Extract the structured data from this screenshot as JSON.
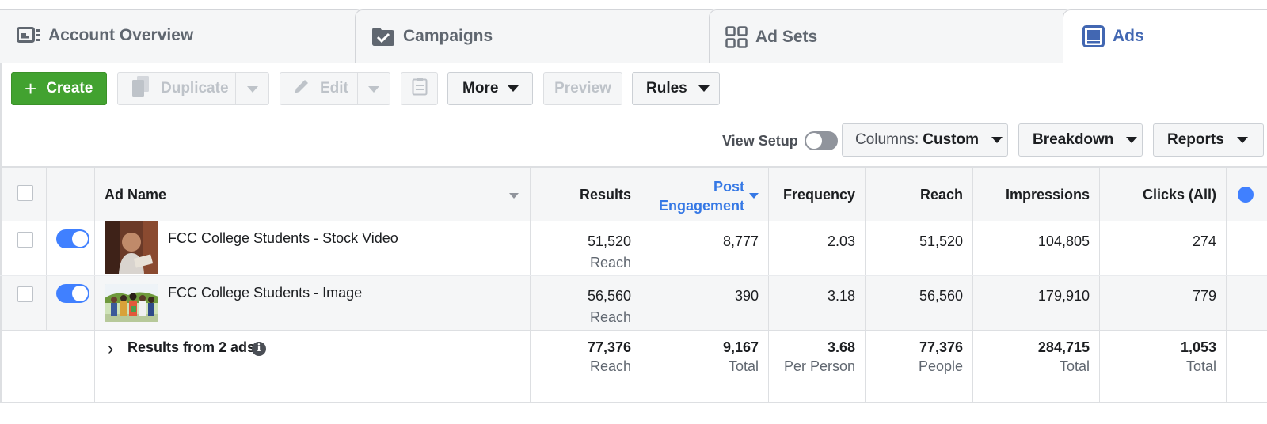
{
  "tabs": [
    {
      "label": "Account Overview",
      "icon": "account-overview-icon"
    },
    {
      "label": "Campaigns",
      "icon": "campaigns-folder-icon"
    },
    {
      "label": "Ad Sets",
      "icon": "ad-sets-grid-icon"
    },
    {
      "label": "Ads",
      "icon": "ads-icon",
      "active": true
    }
  ],
  "toolbar": {
    "create_label": "Create",
    "duplicate_label": "Duplicate",
    "edit_label": "Edit",
    "more_label": "More",
    "preview_label": "Preview",
    "rules_label": "Rules",
    "view_setup_label": "View Setup",
    "columns_prefix": "Columns:",
    "columns_value": "Custom",
    "breakdown_label": "Breakdown",
    "reports_label": "Reports"
  },
  "table": {
    "headers": {
      "ad_name": "Ad Name",
      "results": "Results",
      "post_engagement_1": "Post",
      "post_engagement_2": "Engagement",
      "frequency": "Frequency",
      "reach": "Reach",
      "impressions": "Impressions",
      "clicks": "Clicks (All)"
    },
    "rows": [
      {
        "name": "FCC College Students - Stock Video",
        "results": "51,520",
        "results_sub": "Reach",
        "post_engagement": "8,777",
        "frequency": "2.03",
        "reach": "51,520",
        "impressions": "104,805",
        "clicks": "274",
        "active": true
      },
      {
        "name": "FCC College Students - Image",
        "results": "56,560",
        "results_sub": "Reach",
        "post_engagement": "390",
        "frequency": "3.18",
        "reach": "56,560",
        "impressions": "179,910",
        "clicks": "779",
        "active": true
      }
    ],
    "summary": {
      "label": "Results from 2 ads",
      "results": "77,376",
      "results_sub": "Reach",
      "post_engagement": "9,167",
      "post_engagement_sub": "Total",
      "frequency": "3.68",
      "frequency_sub": "Per Person",
      "reach": "77,376",
      "reach_sub": "People",
      "impressions": "284,715",
      "impressions_sub": "Total",
      "clicks": "1,053",
      "clicks_sub": "Total"
    }
  },
  "colors": {
    "accent": "#4267b2",
    "create_green": "#42a230",
    "toggle_blue": "#4080ff",
    "sort_blue": "#3578e5"
  }
}
